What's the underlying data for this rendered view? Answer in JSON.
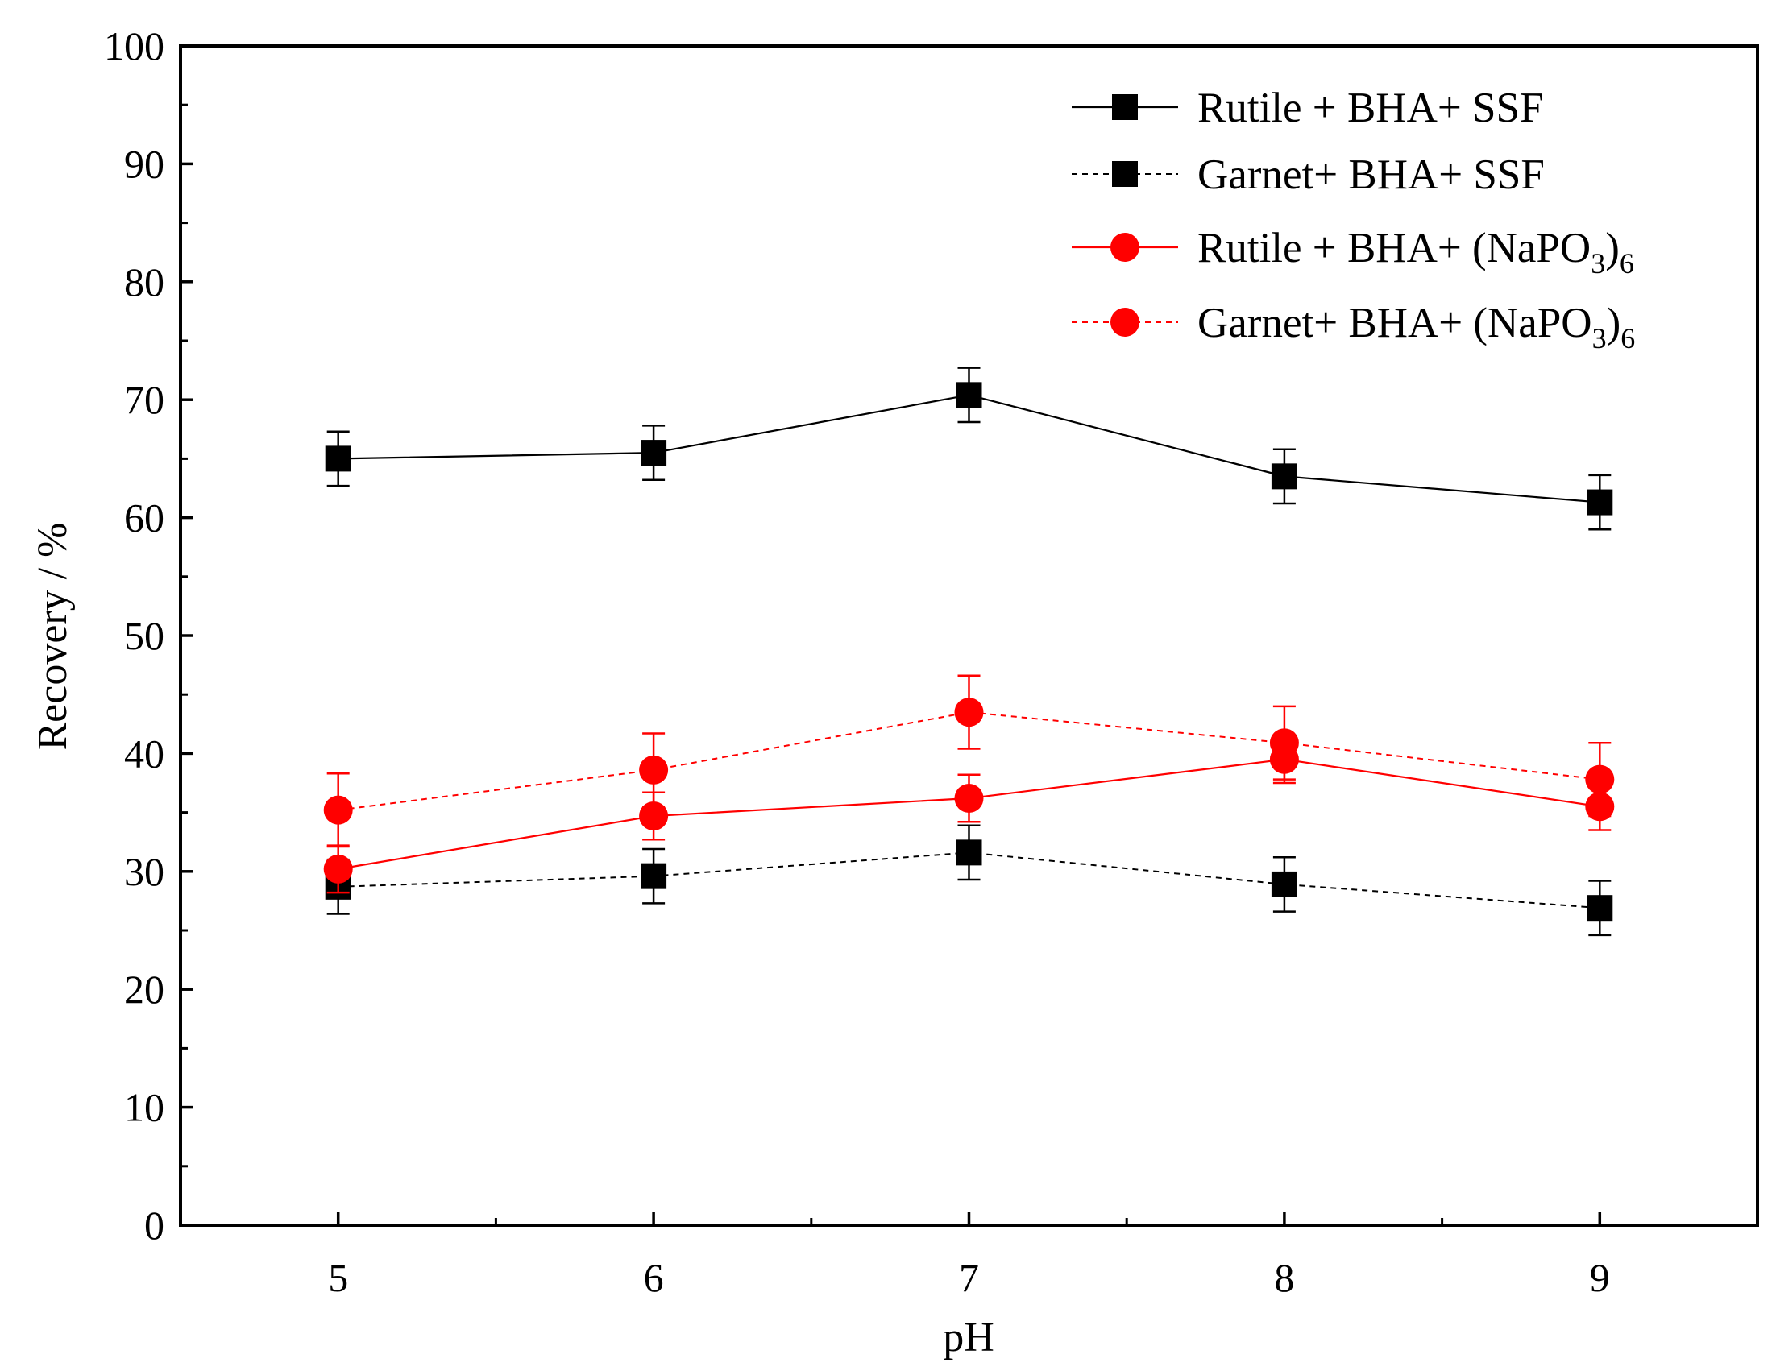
{
  "chart_data": {
    "type": "line",
    "title": "",
    "xlabel": "pH",
    "ylabel": "Recovery / %",
    "x": [
      5,
      6,
      7,
      8,
      9
    ],
    "xlim": [
      4.5,
      9.5
    ],
    "ylim": [
      0,
      100
    ],
    "xticks": [
      "5",
      "6",
      "7",
      "8",
      "9"
    ],
    "yticks": [
      "0",
      "10",
      "20",
      "30",
      "40",
      "50",
      "60",
      "70",
      "80",
      "90",
      "100"
    ],
    "legend_position": "top-right",
    "series": [
      {
        "name": "Rutile + BHA+ SSF",
        "legend": {
          "main": "Rutile + BHA+ SSF",
          "sub": "",
          "tail": ""
        },
        "color": "#000000",
        "line": "solid",
        "marker": "square",
        "values": [
          65.0,
          65.5,
          70.4,
          63.5,
          61.3
        ],
        "errors": [
          2.3,
          2.3,
          2.3,
          2.3,
          2.3
        ]
      },
      {
        "name": "Garnet+ BHA+ SSF",
        "legend": {
          "main": "Garnet+ BHA+ SSF",
          "sub": "",
          "tail": ""
        },
        "color": "#000000",
        "line": "dashed",
        "marker": "square",
        "values": [
          28.7,
          29.6,
          31.6,
          28.9,
          26.9
        ],
        "errors": [
          2.3,
          2.3,
          2.3,
          2.3,
          2.3
        ]
      },
      {
        "name": "Rutile + BHA+ (NaPO3)6",
        "legend": {
          "main": "Rutile + BHA+ (NaPO",
          "sub": "3",
          "tail": ")",
          "sub2": "6"
        },
        "color": "#ff0000",
        "line": "solid",
        "marker": "circle",
        "values": [
          30.2,
          34.7,
          36.2,
          39.5,
          35.5
        ],
        "errors": [
          2.0,
          2.0,
          2.0,
          2.0,
          2.0
        ]
      },
      {
        "name": "Garnet+ BHA+ (NaPO3)6",
        "legend": {
          "main": "Garnet+ BHA+ (NaPO",
          "sub": "3",
          "tail": ")",
          "sub2": "6"
        },
        "color": "#ff0000",
        "line": "dashed",
        "marker": "circle",
        "values": [
          35.2,
          38.6,
          43.5,
          40.9,
          37.8
        ],
        "errors": [
          3.1,
          3.1,
          3.1,
          3.1,
          3.1
        ]
      }
    ]
  }
}
